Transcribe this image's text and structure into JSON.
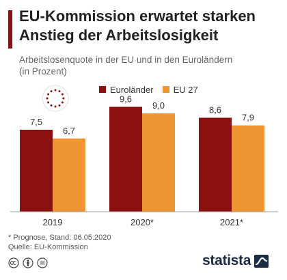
{
  "title": "EU-Kommission erwartet starken Anstieg der Arbeitslosigkeit",
  "subtitle_lines": [
    "Arbeitslosenquote in der EU und in den Euroländern",
    "(in Prozent)"
  ],
  "footnote": "* Prognose, Stand: 06.05.2020",
  "source": "Quelle: EU-Kommission",
  "brand": "statista",
  "colors": {
    "euro": "#8b1010",
    "eu27": "#ef9633",
    "title_bar": "#8b1010",
    "brand": "#1b2a46"
  },
  "icons": {
    "logo": "eu-flag-stars-icon",
    "license": [
      "cc-icon",
      "by-person-icon",
      "nd-equal-icon"
    ],
    "brand_mark": "statista-wave-icon"
  },
  "chart_data": {
    "type": "bar",
    "categories": [
      "2019",
      "2020*",
      "2021*"
    ],
    "series": [
      {
        "name": "Euroländer",
        "values": [
          7.5,
          9.6,
          8.6
        ],
        "labels": [
          "7,5",
          "9,6",
          "8,6"
        ],
        "color": "#8b1010"
      },
      {
        "name": "EU 27",
        "values": [
          6.7,
          9.0,
          7.9
        ],
        "labels": [
          "6,7",
          "9,0",
          "7,9"
        ],
        "color": "#ef9633"
      }
    ],
    "ylim": [
      0,
      10
    ],
    "grid": false,
    "legend": "top"
  }
}
